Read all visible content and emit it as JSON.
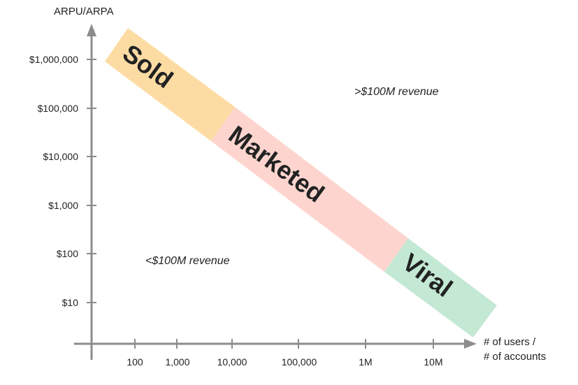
{
  "y_axis": {
    "title": "ARPU/ARPA",
    "ticks": [
      "$1,000,000",
      "$100,000",
      "$10,000",
      "$1,000",
      "$100",
      "$10"
    ]
  },
  "x_axis": {
    "title_line1": "# of users /",
    "title_line2": "# of accounts",
    "ticks": [
      "100",
      "1,000",
      "10,000",
      "100,000",
      "1M",
      "10M"
    ]
  },
  "bands": [
    {
      "label": "Sold",
      "color": "#FDDCA4"
    },
    {
      "label": "Marketed",
      "color": "#FDD5CE"
    },
    {
      "label": "Viral",
      "color": "#C3E8D4"
    }
  ],
  "regions": {
    "upper": ">$100M revenue",
    "lower": "<$100M revenue"
  },
  "colors": {
    "axis": "#8c8c8c",
    "text": "#222222"
  }
}
